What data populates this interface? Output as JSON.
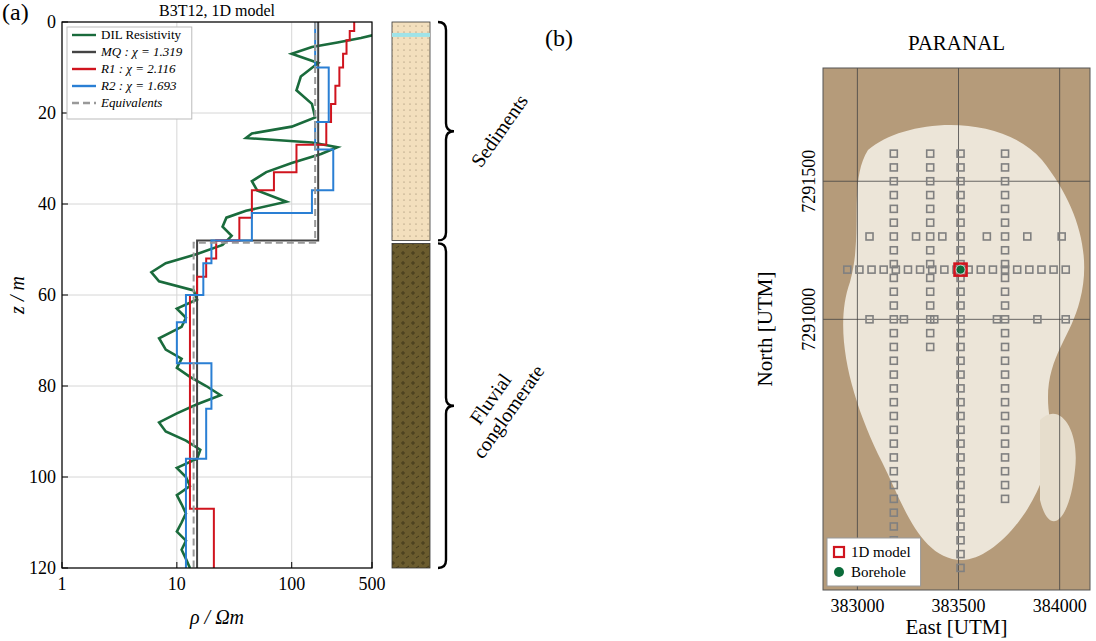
{
  "chart_data": [
    {
      "type": "line",
      "panel_label": "(a)",
      "title": "B3T12, 1D model",
      "x_label": "ρ / Ωm",
      "y_label": "z / m",
      "log": "x",
      "grid": true,
      "legend": "upper left",
      "xlim": [
        1,
        500
      ],
      "ylim": [
        0,
        120
      ],
      "xticks": [
        1,
        10,
        100,
        500
      ],
      "yticks": [
        0,
        20,
        40,
        60,
        80,
        100,
        120
      ],
      "series": [
        {
          "name": "DIL Resistivity",
          "color": "#1a6b3c",
          "line_style": "solid",
          "x": [
            600,
            400,
            250,
            150,
            100,
            170,
            120,
            110,
            150,
            160,
            100,
            45,
            40,
            150,
            250,
            180,
            100,
            60,
            45,
            50,
            90,
            40,
            27,
            25,
            30,
            25,
            15,
            8,
            6,
            7,
            14,
            15,
            10,
            12,
            11,
            7,
            8,
            11,
            10,
            13,
            18,
            24,
            15,
            10,
            7,
            8,
            12,
            16,
            15,
            10,
            12,
            13,
            10,
            11,
            12,
            11,
            10,
            12,
            11,
            12,
            13
          ],
          "values": [
            2.5,
            3.5,
            4.5,
            5.5,
            7,
            9,
            12,
            15,
            18,
            21,
            23,
            24.5,
            25.5,
            26.5,
            27.5,
            29,
            31,
            33,
            35,
            37,
            39.5,
            41.5,
            43,
            45,
            47,
            49,
            51,
            53,
            55,
            57,
            59,
            61,
            63,
            65,
            67,
            69.5,
            72,
            74,
            76,
            78,
            80,
            82,
            84,
            86,
            88,
            90,
            92,
            94,
            96,
            98,
            100,
            102,
            104,
            106,
            108,
            110,
            112,
            114,
            116,
            118,
            120
          ]
        },
        {
          "name": "MQ : χ = 1.319",
          "color": "#444444",
          "line_style": "solid",
          "x": [
            170,
            170,
            15,
            15
          ],
          "values": [
            0,
            48,
            48,
            120
          ]
        },
        {
          "name": "R1 : χ = 2.116",
          "color": "#d0141e",
          "line_style": "solid",
          "x": [
            350,
            350,
            320,
            320,
            300,
            300,
            280,
            280,
            260,
            260,
            240,
            240,
            220,
            220,
            200,
            200,
            110,
            110,
            70,
            70,
            45,
            45,
            35,
            35,
            22,
            22,
            18,
            18,
            15,
            15,
            13,
            13,
            21,
            21
          ],
          "values": [
            0,
            2,
            2,
            4,
            4,
            7,
            7,
            10,
            10,
            14,
            14,
            18,
            18,
            22,
            22,
            27,
            27,
            33,
            33,
            37,
            37,
            43,
            43,
            48,
            48,
            52,
            52,
            56,
            56,
            60,
            60,
            107,
            107,
            120
          ]
        },
        {
          "name": "R2 : χ = 1.693",
          "color": "#2a7fd4",
          "line_style": "solid",
          "x": [
            160,
            160,
            210,
            210,
            160,
            160,
            230,
            230,
            150,
            150,
            45,
            45,
            20,
            20,
            17,
            17,
            12,
            12,
            10,
            10,
            20,
            20,
            18,
            18,
            12,
            12
          ],
          "values": [
            0,
            10,
            10,
            22,
            22,
            28,
            28,
            37,
            37,
            42,
            42,
            48,
            48,
            53,
            53,
            60,
            60,
            66,
            66,
            75,
            75,
            85,
            85,
            96,
            96,
            120
          ]
        },
        {
          "name": "Equivalents",
          "color": "#999999",
          "line_style": "dashed",
          "x": [
            160,
            160,
            14,
            14
          ],
          "values": [
            0,
            48.5,
            48.5,
            120
          ]
        }
      ],
      "lithology": [
        {
          "label": "Sediments",
          "top": 0,
          "bottom": 48
        },
        {
          "label": "Fluvial conglomerate",
          "top": 48,
          "bottom": 120
        }
      ]
    },
    {
      "type": "scatter",
      "panel_label": "(b)",
      "title": "PARANAL",
      "x_label": "East [UTM]",
      "y_label": "North [UTM]",
      "grid": true,
      "legend": "lower left",
      "xlim": [
        382830,
        384150
      ],
      "ylim": [
        7290020,
        7291910
      ],
      "xticks": [
        383000,
        383500,
        384000
      ],
      "yticks": [
        7291000,
        7291500
      ],
      "series": [
        {
          "color": "#808080",
          "marker": "square",
          "x": [
            383180,
            383180,
            383180,
            383180,
            383180,
            383180,
            383180,
            383180,
            383180,
            383180,
            383180,
            383180,
            383180,
            383180,
            383180,
            383180,
            383180,
            383180,
            383180,
            383180,
            383180,
            383180,
            383180,
            383180,
            383180,
            383180,
            383180,
            383180,
            383180
          ],
          "values": [
            7291600,
            7291550,
            7291500,
            7291450,
            7291400,
            7291350,
            7291300,
            7291250,
            7291200,
            7291150,
            7291100,
            7291050,
            7291000,
            7290950,
            7290900,
            7290850,
            7290800,
            7290750,
            7290700,
            7290650,
            7290600,
            7290550,
            7290500,
            7290450,
            7290400,
            7290350,
            7290300,
            7290250,
            7290200
          ]
        },
        {
          "color": "#808080",
          "marker": "square",
          "x": [
            383360,
            383360,
            383360,
            383360,
            383360,
            383360,
            383360,
            383360,
            383360,
            383360,
            383360,
            383360,
            383360,
            383360,
            383360
          ],
          "values": [
            7291600,
            7291550,
            7291500,
            7291450,
            7291400,
            7291350,
            7291300,
            7291250,
            7291200,
            7291150,
            7291100,
            7291050,
            7291000,
            7290950,
            7290900
          ]
        },
        {
          "color": "#808080",
          "marker": "square",
          "x": [
            383510,
            383510,
            383510,
            383510,
            383510,
            383510,
            383510,
            383510,
            383510,
            383510,
            383510,
            383510,
            383510,
            383510,
            383510,
            383510,
            383510,
            383510,
            383510,
            383510,
            383510,
            383510,
            383510,
            383510,
            383510,
            383510,
            383510,
            383510,
            383510,
            383510,
            383510
          ],
          "values": [
            7291600,
            7291550,
            7291500,
            7291450,
            7291400,
            7291350,
            7291300,
            7291250,
            7291200,
            7291150,
            7291100,
            7291050,
            7291000,
            7290950,
            7290900,
            7290850,
            7290800,
            7290750,
            7290700,
            7290650,
            7290600,
            7290550,
            7290500,
            7290450,
            7290400,
            7290350,
            7290300,
            7290250,
            7290200,
            7290150,
            7290100
          ]
        },
        {
          "color": "#808080",
          "marker": "square",
          "x": [
            383730,
            383730,
            383730,
            383730,
            383730,
            383730,
            383730,
            383730,
            383730,
            383730,
            383730,
            383730,
            383730,
            383730,
            383730,
            383730,
            383730,
            383730,
            383730,
            383730,
            383730,
            383730,
            383730,
            383730,
            383730,
            383730
          ],
          "values": [
            7291600,
            7291550,
            7291500,
            7291450,
            7291400,
            7291350,
            7291300,
            7291250,
            7291200,
            7291150,
            7291100,
            7291050,
            7291000,
            7290950,
            7290900,
            7290850,
            7290800,
            7290750,
            7290700,
            7290650,
            7290600,
            7290550,
            7290500,
            7290450,
            7290400,
            7290350
          ]
        },
        {
          "color": "#808080",
          "marker": "square",
          "x": [
            382950,
            383010,
            383070,
            383130,
            383190,
            383250,
            383310,
            383370,
            383430,
            383490,
            383550,
            383610,
            383670,
            383730,
            383790,
            383850,
            383910,
            383970,
            384030
          ],
          "values": [
            7291180,
            7291180,
            7291180,
            7291180,
            7291180,
            7291180,
            7291180,
            7291180,
            7291180,
            7291180,
            7291180,
            7291180,
            7291180,
            7291180,
            7291180,
            7291180,
            7291180,
            7291180,
            7291180
          ]
        },
        {
          "color": "#808080",
          "marker": "square",
          "x": [
            383060,
            383290,
            383420,
            383640,
            383840,
            384010
          ],
          "values": [
            7291300,
            7291300,
            7291300,
            7291300,
            7291300,
            7291300
          ]
        },
        {
          "color": "#808080",
          "marker": "square",
          "x": [
            383060,
            383230,
            383380,
            383690,
            383890,
            384030
          ],
          "values": [
            7291000,
            7291000,
            7291000,
            7291000,
            7291000,
            7291000
          ]
        },
        {
          "name": "1D model",
          "color": "#d0141e",
          "marker": "square",
          "x": [
            383510
          ],
          "values": [
            7291180
          ]
        },
        {
          "name": "Borehole",
          "color": "#0b6b3a",
          "marker": "circle",
          "x": [
            383510
          ],
          "values": [
            7291180
          ]
        }
      ]
    }
  ]
}
